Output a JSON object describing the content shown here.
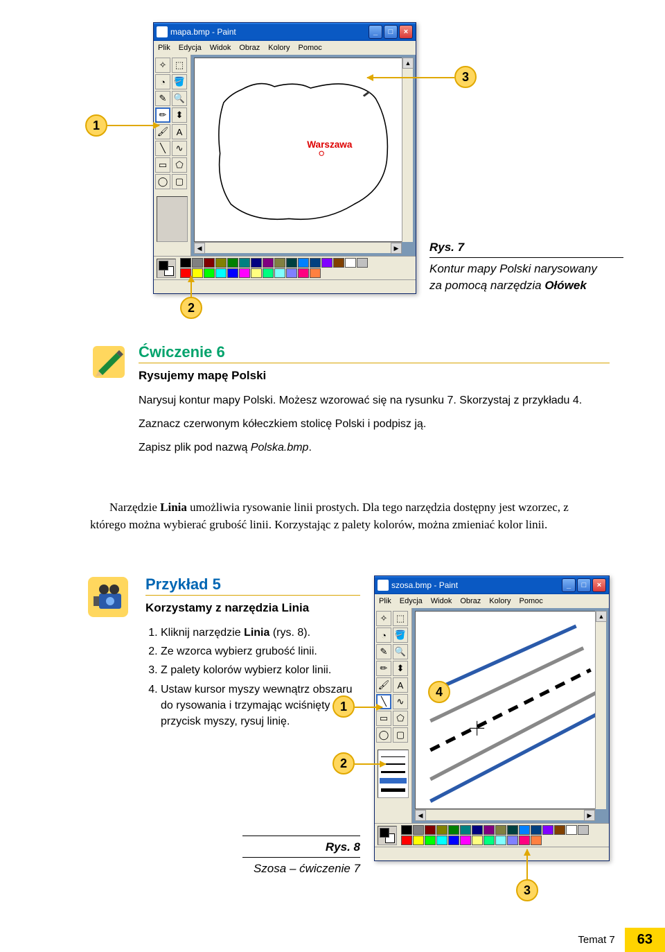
{
  "paint1": {
    "title": "mapa.bmp - Paint",
    "menus": [
      "Plik",
      "Edycja",
      "Widok",
      "Obraz",
      "Kolory",
      "Pomoc"
    ],
    "canvas_label": "Warszawa",
    "palette_colors_row1": [
      "#000000",
      "#808080",
      "#800000",
      "#808000",
      "#008000",
      "#008080",
      "#000080",
      "#800080",
      "#808040",
      "#004040",
      "#0080ff",
      "#004080",
      "#8000ff",
      "#804000"
    ],
    "palette_colors_row2": [
      "#ffffff",
      "#c0c0c0",
      "#ff0000",
      "#ffff00",
      "#00ff00",
      "#00ffff",
      "#0000ff",
      "#ff00ff",
      "#ffff80",
      "#00ff80",
      "#80ffff",
      "#8080ff",
      "#ff0080",
      "#ff8040"
    ]
  },
  "paint2": {
    "title": "szosa.bmp - Paint",
    "menus": [
      "Plik",
      "Edycja",
      "Widok",
      "Obraz",
      "Kolory",
      "Pomoc"
    ],
    "palette_colors_row1": [
      "#000000",
      "#808080",
      "#800000",
      "#808000",
      "#008000",
      "#008080",
      "#000080",
      "#800080",
      "#808040",
      "#004040",
      "#0080ff",
      "#004080",
      "#8000ff",
      "#804000"
    ],
    "palette_colors_row2": [
      "#ffffff",
      "#c0c0c0",
      "#ff0000",
      "#ffff00",
      "#00ff00",
      "#00ffff",
      "#0000ff",
      "#ff00ff",
      "#ffff80",
      "#00ff80",
      "#80ffff",
      "#8080ff",
      "#ff0080",
      "#ff8040"
    ]
  },
  "callouts": {
    "c1": "1",
    "c2": "2",
    "c3": "3",
    "c4": "4"
  },
  "fig7": {
    "num": "Rys. 7",
    "text1": "Kontur mapy Polski narysowany",
    "text2": "za pomocą narzędzia ",
    "text2b": "Ołówek"
  },
  "fig8": {
    "num": "Rys. 8",
    "text": "Szosa – ćwiczenie 7"
  },
  "exercise": {
    "title": "Ćwiczenie 6",
    "subtitle": "Rysujemy mapę Polski",
    "p1": "Narysuj kontur mapy Polski. Możesz wzorować się na rysunku 7. Skorzystaj z przykładu 4.",
    "p2": "Zaznacz czerwonym kółeczkiem stolicę Polski i podpisz ją.",
    "p3a": "Zapisz plik pod nazwą ",
    "p3i": "Polska.bmp",
    "p3b": "."
  },
  "bodytext": {
    "t1": "Narzędzie ",
    "t1b": "Linia",
    "t2": " umożliwia rysowanie linii prostych. Dla tego narzędzia dostępny jest wzorzec, z którego można wybierać grubość linii. Korzystając z palety kolorów, można zmieniać kolor linii."
  },
  "przyklad": {
    "title": "Przykład 5",
    "subtitle": "Korzystamy z narzędzia Linia",
    "li1a": "Kliknij narzędzie ",
    "li1b": "Linia",
    "li1c": " (rys. 8).",
    "li2": "Ze wzorca wybierz grubość linii.",
    "li3": "Z palety kolorów wybierz kolor linii.",
    "li4": "Ustaw kursor myszy wewnątrz obszaru do rysowania i trzymając wciśnięty przycisk myszy, rysuj linię."
  },
  "footer": {
    "topic": "Temat 7",
    "page": "63"
  },
  "tools": [
    "✧",
    "▭",
    "◔",
    "⬚",
    "✎",
    "🔍",
    "✏",
    "⬍",
    "🖌",
    "A",
    "╲",
    "∿",
    "▭",
    "⬠",
    "◯",
    "◐"
  ],
  "win_btns": {
    "min": "_",
    "max": "□",
    "close": "×"
  }
}
